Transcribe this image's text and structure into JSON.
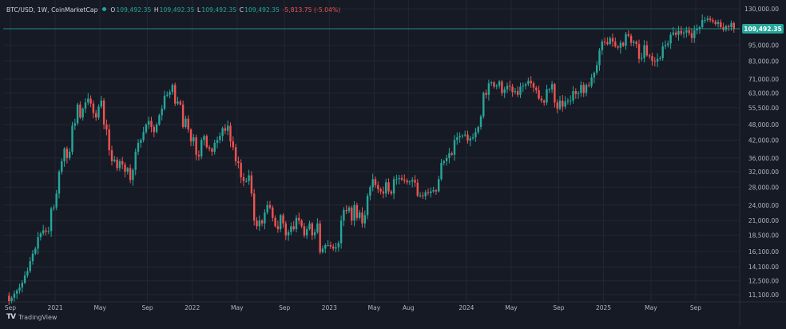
{
  "header": {
    "symbol": "BTC/USD, 1W, CoinMarketCap",
    "o_label": "O",
    "o_value": "109,492.35",
    "h_label": "H",
    "h_value": "109,492.35",
    "l_label": "L",
    "l_value": "109,492.35",
    "c_label": "C",
    "c_value": "109,492.35",
    "change": "-5,813.75 (-5.04%)"
  },
  "brand": {
    "text": "TradingView",
    "logo": "TV"
  },
  "colors": {
    "up": "#26a69a",
    "down": "#ef5350",
    "background": "#161a25",
    "grid": "#232733",
    "price_line": "#26a69a"
  },
  "chart_data": {
    "type": "candlestick",
    "interval": "1W",
    "scale": "log",
    "last_price_label": "109,492.35",
    "last_price": 109492.35,
    "y_ticks": [
      {
        "v": 130000,
        "t": "130,000.00"
      },
      {
        "v": 95000,
        "t": "95,000.00"
      },
      {
        "v": 83000,
        "t": "83,000.00"
      },
      {
        "v": 71000,
        "t": "71,000.00"
      },
      {
        "v": 63000,
        "t": "63,000.00"
      },
      {
        "v": 55500,
        "t": "55,500.00"
      },
      {
        "v": 48000,
        "t": "48,000.00"
      },
      {
        "v": 42000,
        "t": "42,000.00"
      },
      {
        "v": 36000,
        "t": "36,000.00"
      },
      {
        "v": 32000,
        "t": "32,000.00"
      },
      {
        "v": 28000,
        "t": "28,000.00"
      },
      {
        "v": 24000,
        "t": "24,000.00"
      },
      {
        "v": 21000,
        "t": "21,000.00"
      },
      {
        "v": 18500,
        "t": "18,500.00"
      },
      {
        "v": 16100,
        "t": "16,100.00"
      },
      {
        "v": 14100,
        "t": "14,100.00"
      },
      {
        "v": 12500,
        "t": "12,500.00"
      },
      {
        "v": 11100,
        "t": "11,100.00"
      }
    ],
    "x_ticks": [
      {
        "label": "Sep",
        "week": 0
      },
      {
        "label": "2021",
        "week": 17
      },
      {
        "label": "May",
        "week": 34
      },
      {
        "label": "Sep",
        "week": 52
      },
      {
        "label": "2022",
        "week": 69
      },
      {
        "label": "May",
        "week": 86
      },
      {
        "label": "Sep",
        "week": 104
      },
      {
        "label": "2023",
        "week": 121
      },
      {
        "label": "May",
        "week": 138
      },
      {
        "label": "Aug",
        "week": 151
      },
      {
        "label": "2024",
        "week": 173
      },
      {
        "label": "May",
        "week": 190
      },
      {
        "label": "Sep",
        "week": 208
      },
      {
        "label": "2025",
        "week": 225
      },
      {
        "label": "May",
        "week": 243
      },
      {
        "label": "Sep",
        "week": 260
      }
    ],
    "weekly_closes": [
      11000,
      10500,
      10800,
      11200,
      11500,
      11800,
      12300,
      13100,
      13600,
      14800,
      15800,
      16500,
      18200,
      18800,
      19300,
      19100,
      19200,
      23300,
      23500,
      26500,
      32000,
      35000,
      39000,
      36000,
      38000,
      47500,
      48500,
      57000,
      51000,
      55000,
      58000,
      60000,
      57500,
      53000,
      51000,
      56000,
      59000,
      48000,
      46000,
      38500,
      35000,
      35500,
      33000,
      35000,
      34000,
      32000,
      33000,
      29800,
      32500,
      38000,
      41000,
      42000,
      45000,
      48000,
      49500,
      47000,
      45000,
      48000,
      52000,
      55000,
      61500,
      62000,
      63500,
      67500,
      57500,
      58500,
      57000,
      47000,
      50500,
      46000,
      41500,
      43000,
      37000,
      36500,
      42000,
      43500,
      39500,
      39000,
      38000,
      41000,
      42000,
      43500,
      46500,
      45500,
      47500,
      41500,
      39500,
      35000,
      34500,
      30500,
      29500,
      29500,
      31000,
      26500,
      21000,
      20000,
      21000,
      20500,
      22500,
      24000,
      23500,
      21500,
      20000,
      19500,
      22000,
      20500,
      18500,
      19000,
      20000,
      19500,
      21500,
      21000,
      20000,
      18500,
      19500,
      20500,
      18500,
      19000,
      20500,
      16000,
      16500,
      17000,
      17000,
      16800,
      16500,
      16700,
      17300,
      21000,
      23000,
      22800,
      23500,
      21000,
      24000,
      21500,
      22500,
      20500,
      22000,
      26000,
      28000,
      30000,
      28500,
      27500,
      27000,
      26500,
      29200,
      27000,
      26500,
      30000,
      30000,
      30300,
      29900,
      29600,
      29200,
      29400,
      29800,
      29100,
      26000,
      26100,
      25900,
      26800,
      26600,
      27000,
      27300,
      27000,
      30000,
      34500,
      35000,
      36000,
      37500,
      37000,
      42000,
      43000,
      43500,
      43700,
      44000,
      41800,
      42600,
      43000,
      45000,
      47000,
      51500,
      63000,
      62000,
      68500,
      69000,
      66500,
      67000,
      69500,
      63000,
      65000,
      67000,
      66500,
      63500,
      64000,
      62000,
      66500,
      67000,
      68000,
      70000,
      68500,
      66000,
      64500,
      60000,
      59000,
      58000,
      65000,
      65000,
      68000,
      58000,
      55000,
      59000,
      56000,
      58500,
      59000,
      59000,
      64000,
      62500,
      63000,
      67500,
      63000,
      67500,
      67000,
      72000,
      75000,
      80000,
      91000,
      98000,
      97500,
      96000,
      101000,
      98000,
      94000,
      93000,
      97000,
      94500,
      104500,
      103000,
      97000,
      98000,
      96000,
      84500,
      85000,
      95000,
      87000,
      86500,
      83000,
      82500,
      84500,
      85000,
      94000,
      95000,
      96500,
      104000,
      106000,
      104000,
      107500,
      105000,
      106000,
      108000,
      105500,
      101000,
      108000,
      109500,
      111000,
      118000,
      118000,
      119500,
      118000,
      116500,
      114000,
      116000,
      111000,
      108500,
      112000,
      111000,
      115000,
      109492
    ]
  }
}
